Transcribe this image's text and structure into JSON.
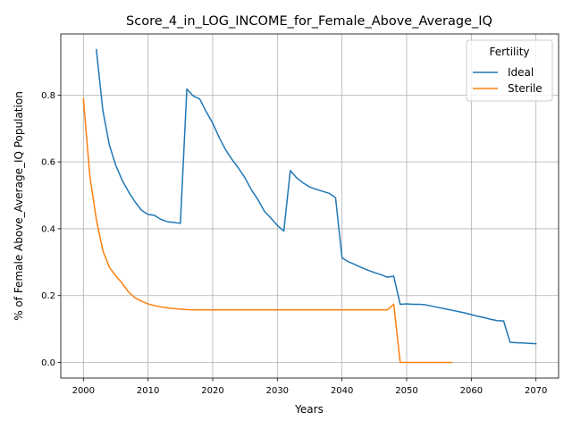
{
  "chart_data": {
    "type": "line",
    "title": "Score_4_in_LOG_INCOME_for_Female_Above_Average_IQ",
    "xlabel": "Years",
    "ylabel": "% of Female Above_Average_IQ Population",
    "xlim": [
      1996.5,
      2073.5
    ],
    "ylim": [
      -0.0468,
      0.9828
    ],
    "xticks": [
      2000,
      2010,
      2020,
      2030,
      2040,
      2050,
      2060,
      2070
    ],
    "yticks": [
      0.0,
      0.2,
      0.4,
      0.6,
      0.8
    ],
    "ytick_labels": [
      "0.0",
      "0.2",
      "0.4",
      "0.6",
      "0.8"
    ],
    "grid": true,
    "legend": {
      "title": "Fertility",
      "placement": "top-right"
    },
    "series": [
      {
        "name": "Ideal",
        "color": "#1f77b4",
        "x": [
          2002,
          2003,
          2004,
          2005,
          2006,
          2007,
          2008,
          2009,
          2010,
          2011,
          2012,
          2013,
          2014,
          2015,
          2016,
          2017,
          2018,
          2019,
          2020,
          2021,
          2022,
          2023,
          2024,
          2025,
          2026,
          2027,
          2028,
          2029,
          2030,
          2031,
          2032,
          2033,
          2034,
          2035,
          2036,
          2037,
          2038,
          2039,
          2040,
          2041,
          2042,
          2043,
          2044,
          2045,
          2046,
          2047,
          2048,
          2049,
          2050,
          2051,
          2052,
          2053,
          2054,
          2055,
          2056,
          2057,
          2058,
          2059,
          2060,
          2061,
          2062,
          2063,
          2064,
          2065,
          2066,
          2067,
          2068,
          2069,
          2070
        ],
        "y": [
          0.936,
          0.755,
          0.652,
          0.59,
          0.545,
          0.51,
          0.48,
          0.455,
          0.443,
          0.44,
          0.428,
          0.421,
          0.419,
          0.416,
          0.818,
          0.797,
          0.788,
          0.75,
          0.716,
          0.673,
          0.636,
          0.607,
          0.581,
          0.552,
          0.516,
          0.487,
          0.452,
          0.432,
          0.41,
          0.393,
          0.574,
          0.552,
          0.537,
          0.525,
          0.518,
          0.512,
          0.506,
          0.493,
          0.313,
          0.301,
          0.293,
          0.284,
          0.276,
          0.269,
          0.263,
          0.255,
          0.258,
          0.174,
          0.175,
          0.174,
          0.174,
          0.172,
          0.168,
          0.164,
          0.16,
          0.156,
          0.152,
          0.148,
          0.143,
          0.138,
          0.134,
          0.129,
          0.125,
          0.124,
          0.06,
          0.059,
          0.058,
          0.057,
          0.056
        ]
      },
      {
        "name": "Sterile",
        "color": "#ff7f0e",
        "x": [
          2000,
          2001,
          2002,
          2003,
          2004,
          2005,
          2006,
          2007,
          2008,
          2009,
          2010,
          2011,
          2012,
          2013,
          2014,
          2015,
          2016,
          2017,
          2018,
          2019,
          2020,
          2021,
          2022,
          2023,
          2024,
          2025,
          2026,
          2027,
          2028,
          2029,
          2030,
          2031,
          2032,
          2033,
          2034,
          2035,
          2036,
          2037,
          2038,
          2039,
          2040,
          2041,
          2042,
          2043,
          2044,
          2045,
          2046,
          2047,
          2048,
          2049,
          2050,
          2051,
          2052,
          2053,
          2054,
          2055,
          2056,
          2057
        ],
        "y": [
          0.789,
          0.557,
          0.428,
          0.335,
          0.285,
          0.259,
          0.237,
          0.21,
          0.193,
          0.183,
          0.175,
          0.17,
          0.166,
          0.163,
          0.161,
          0.159,
          0.158,
          0.157,
          0.157,
          0.157,
          0.157,
          0.157,
          0.157,
          0.157,
          0.157,
          0.157,
          0.157,
          0.157,
          0.157,
          0.157,
          0.157,
          0.157,
          0.157,
          0.157,
          0.157,
          0.157,
          0.157,
          0.157,
          0.157,
          0.157,
          0.157,
          0.157,
          0.157,
          0.157,
          0.157,
          0.157,
          0.157,
          0.157,
          0.174,
          0.0,
          0.0,
          0.0,
          0.0,
          0.0,
          0.0,
          0.0,
          0.0,
          0.0
        ]
      }
    ]
  }
}
